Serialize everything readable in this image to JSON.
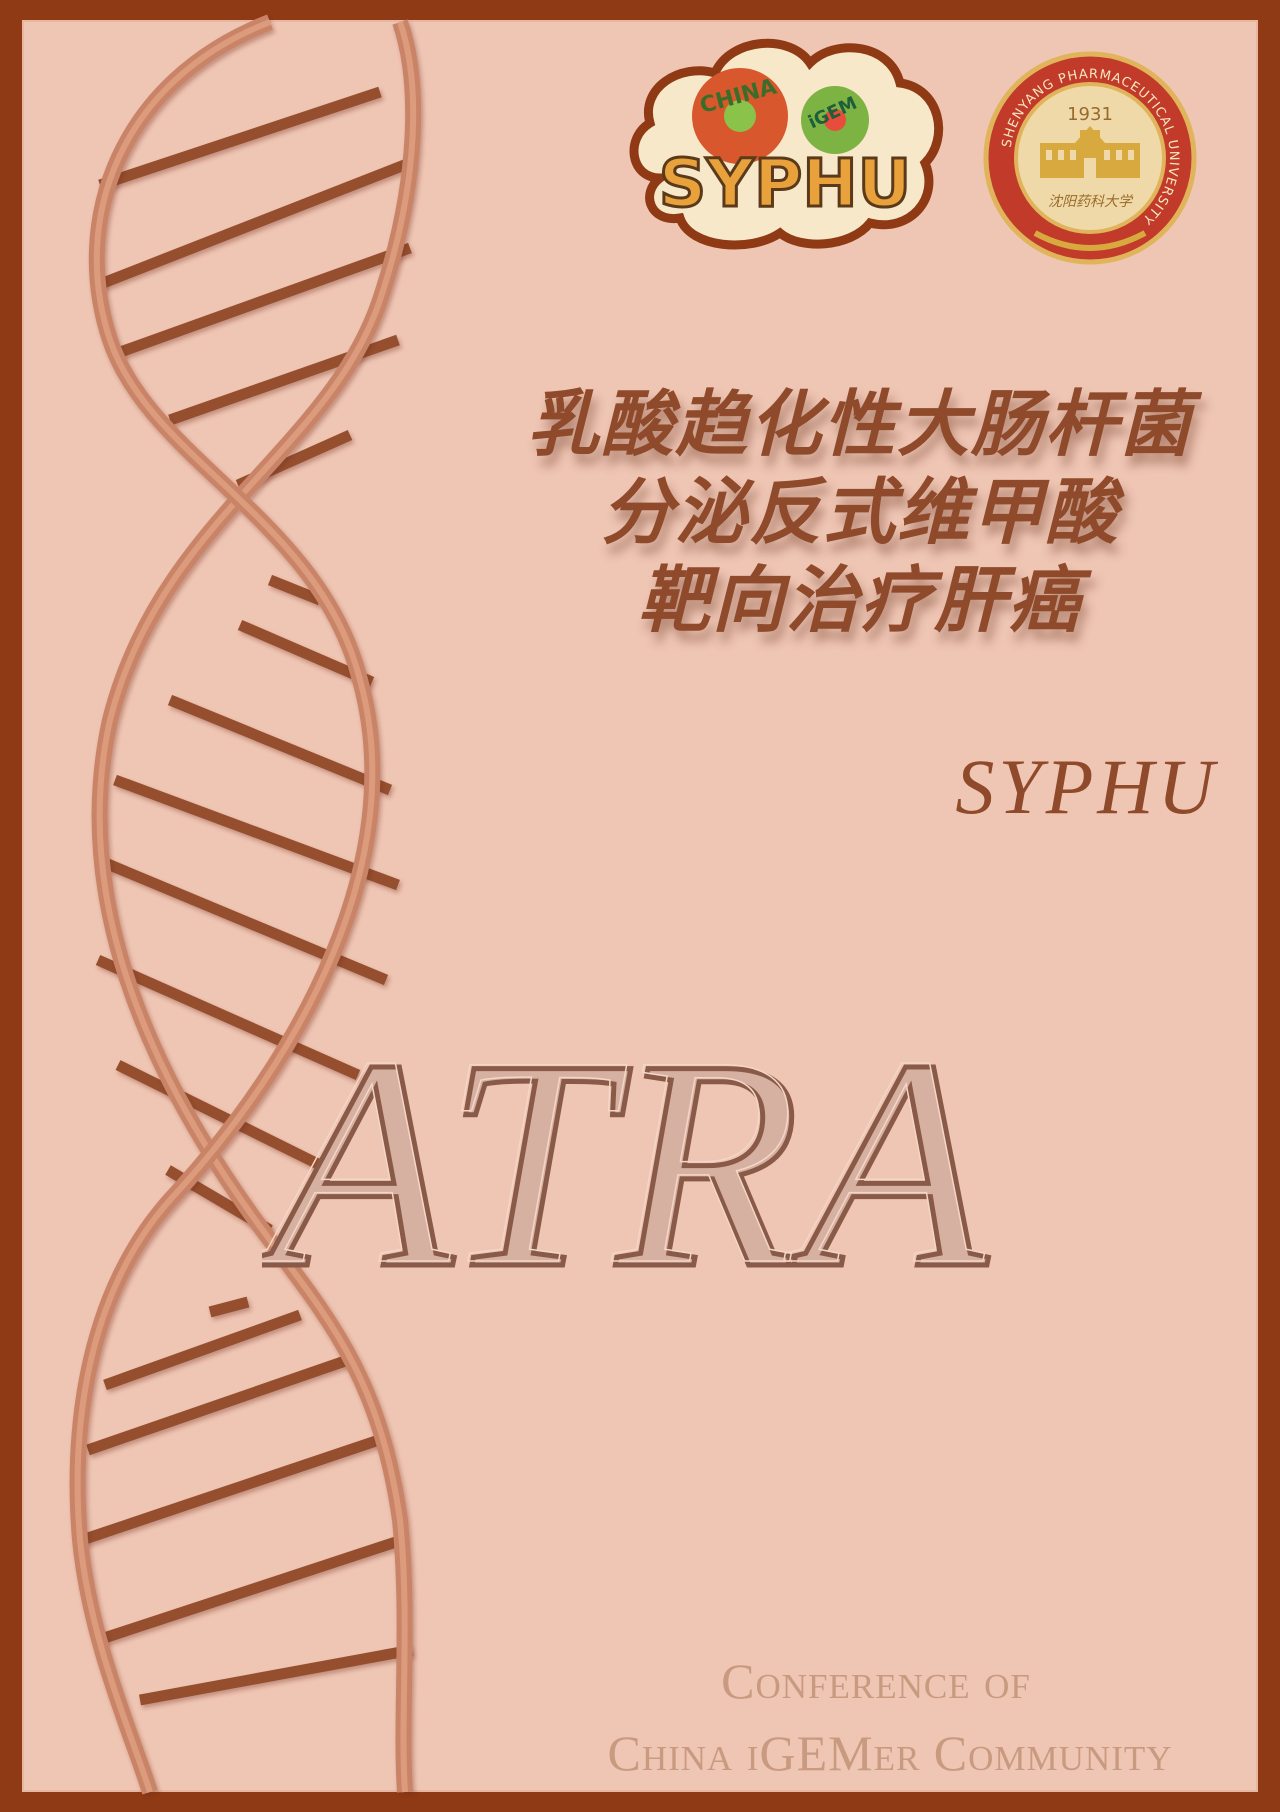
{
  "logos": {
    "team_logo_text": "SYPHU",
    "team_logo_sub1": "CHINA",
    "team_logo_sub2": "iGEM",
    "university_name": "SHENYANG PHARMACEUTICAL UNIVERSITY",
    "university_year": "1931",
    "university_cn": "沈阳药科大学"
  },
  "title_cn": {
    "line1": "乳酸趋化性大肠杆菌",
    "line2": "分泌反式维甲酸",
    "line3": "靶向治疗肝癌"
  },
  "team_name": "SYPHU",
  "project_name": "ATRA",
  "footer": {
    "line1": "Conference of",
    "line2": "China iGEMer Community"
  },
  "colors": {
    "border": "#8f3a14",
    "background": "#efc5b3",
    "accent": "#8e4a2a",
    "dna_strand": "#c98467",
    "dna_rung": "#95502f"
  }
}
